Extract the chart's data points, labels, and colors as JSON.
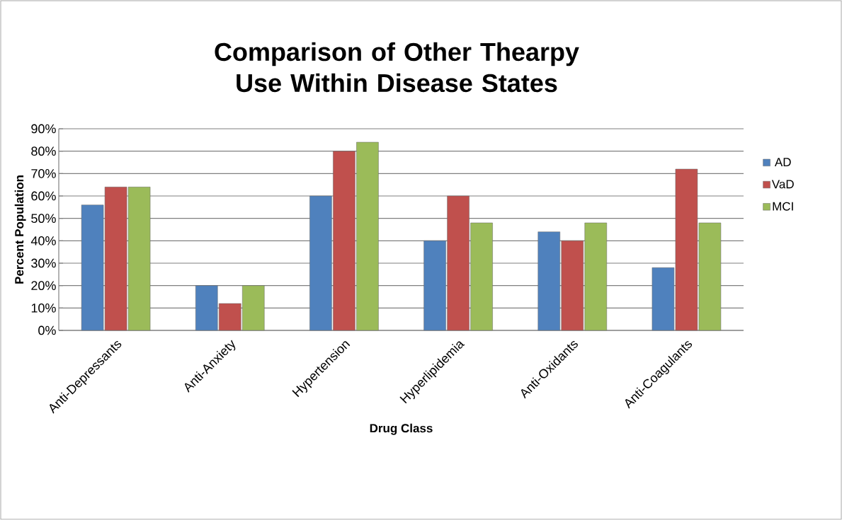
{
  "chart_data": {
    "type": "bar",
    "title": "Comparison of Other Thearpy Use Within Disease States",
    "xlabel": "Drug Class",
    "ylabel": "Percent Population",
    "categories": [
      "Anti-Depressants",
      "Anti-Anxiety",
      "Hypertension",
      "Hyperlipidemia",
      "Anti-Oxidants",
      "Anti-Coagulants"
    ],
    "series": [
      {
        "name": "AD",
        "color": "#4f81bd",
        "values": [
          56,
          20,
          60,
          40,
          44,
          28
        ]
      },
      {
        "name": "VaD",
        "color": "#c0504d",
        "values": [
          64,
          12,
          80,
          60,
          40,
          72
        ]
      },
      {
        "name": "MCI",
        "color": "#9bbb59",
        "values": [
          64,
          20,
          84,
          48,
          48,
          48
        ]
      }
    ],
    "ylim": [
      0,
      90
    ],
    "yticks": [
      {
        "value": 0,
        "label": "0%"
      },
      {
        "value": 10,
        "label": "10%"
      },
      {
        "value": 20,
        "label": "20%"
      },
      {
        "value": 30,
        "label": "30%"
      },
      {
        "value": 40,
        "label": "40%"
      },
      {
        "value": 50,
        "label": "50%"
      },
      {
        "value": 60,
        "label": "60%"
      },
      {
        "value": 70,
        "label": "70%"
      },
      {
        "value": 80,
        "label": "80%"
      },
      {
        "value": 90,
        "label": "90%"
      }
    ],
    "grid": "y",
    "legend": "right"
  }
}
